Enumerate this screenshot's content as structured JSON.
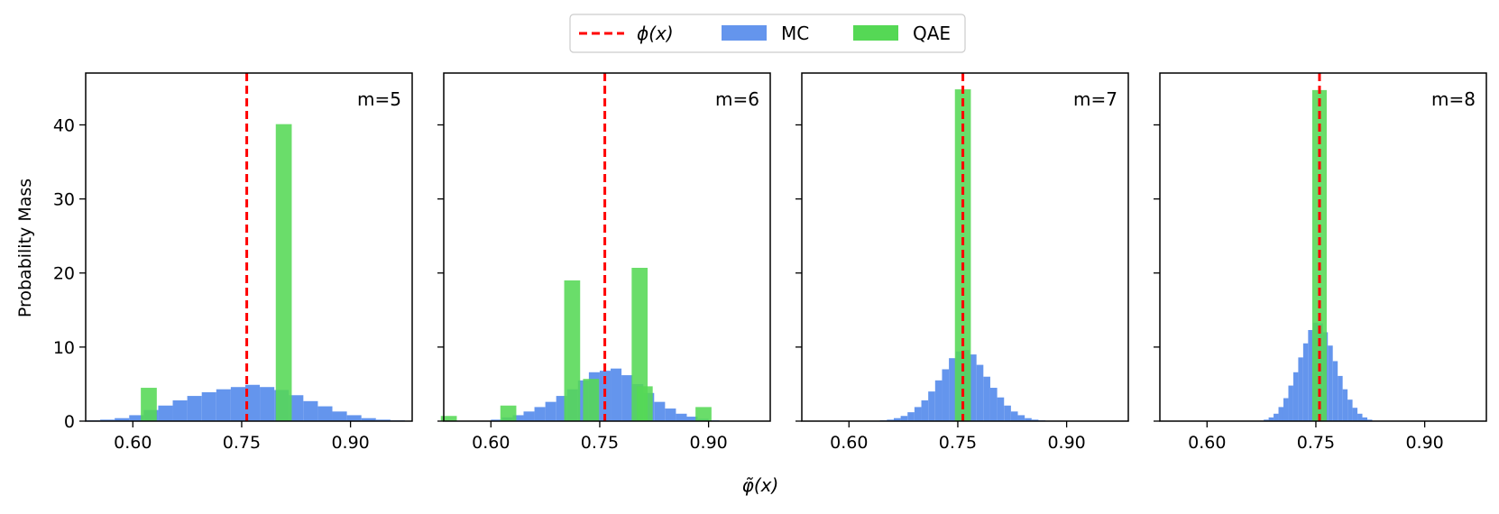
{
  "chart_data": {
    "type": "bar",
    "title": "",
    "xlabel": "φ̃(x)",
    "ylabel": "Probability Mass",
    "ylim": [
      0,
      47
    ],
    "xlim": [
      0.535,
      0.985
    ],
    "x_ticks": [
      0.6,
      0.75,
      0.9
    ],
    "x_tick_labels": [
      "0.60",
      "0.75",
      "0.90"
    ],
    "y_ticks": [
      0,
      10,
      20,
      30,
      40
    ],
    "y_tick_labels": [
      "0",
      "10",
      "20",
      "30",
      "40"
    ],
    "legend": {
      "placement": "top-center",
      "entries": [
        {
          "key": "phi",
          "label": "ϕ(x)",
          "kind": "dashed-line",
          "color": "#ff0000"
        },
        {
          "key": "mc",
          "label": "MC",
          "kind": "patch",
          "color": "#6495ed"
        },
        {
          "key": "qae",
          "label": "QAE",
          "kind": "patch",
          "color": "#55d855"
        }
      ]
    },
    "colors": {
      "mc": "#6495ed",
      "qae": "#55d855",
      "phi": "#ff0000"
    },
    "panels": [
      {
        "label": "m=5",
        "phi": 0.757,
        "mc": {
          "bin_width": 0.02,
          "bins": [
            [
              0.545,
              0.1
            ],
            [
              0.565,
              0.2
            ],
            [
              0.585,
              0.4
            ],
            [
              0.605,
              0.8
            ],
            [
              0.625,
              1.5
            ],
            [
              0.645,
              2.1
            ],
            [
              0.665,
              2.8
            ],
            [
              0.685,
              3.4
            ],
            [
              0.705,
              3.9
            ],
            [
              0.725,
              4.3
            ],
            [
              0.745,
              4.6
            ],
            [
              0.765,
              4.9
            ],
            [
              0.785,
              4.6
            ],
            [
              0.805,
              4.2
            ],
            [
              0.825,
              3.5
            ],
            [
              0.845,
              2.7
            ],
            [
              0.865,
              2.0
            ],
            [
              0.885,
              1.3
            ],
            [
              0.905,
              0.8
            ],
            [
              0.925,
              0.4
            ],
            [
              0.945,
              0.2
            ],
            [
              0.965,
              0.1
            ]
          ]
        },
        "qae": {
          "bar_width": 0.022,
          "bars": [
            [
              0.622,
              4.5
            ],
            [
              0.808,
              40.1
            ]
          ]
        }
      },
      {
        "label": "m=6",
        "phi": 0.757,
        "mc": {
          "bin_width": 0.015,
          "bins": [
            [
              0.6075,
              0.2
            ],
            [
              0.6225,
              0.5
            ],
            [
              0.6375,
              0.8
            ],
            [
              0.6525,
              1.3
            ],
            [
              0.6675,
              1.9
            ],
            [
              0.6825,
              2.6
            ],
            [
              0.6975,
              3.4
            ],
            [
              0.7125,
              4.3
            ],
            [
              0.7275,
              5.5
            ],
            [
              0.7425,
              6.6
            ],
            [
              0.7575,
              6.8
            ],
            [
              0.7725,
              7.1
            ],
            [
              0.7875,
              6.2
            ],
            [
              0.8025,
              5.0
            ],
            [
              0.8175,
              3.8
            ],
            [
              0.8325,
              2.6
            ],
            [
              0.8475,
              1.7
            ],
            [
              0.8625,
              1.0
            ],
            [
              0.8775,
              0.6
            ],
            [
              0.8925,
              0.3
            ],
            [
              0.9075,
              0.1
            ]
          ]
        },
        "qae": {
          "bar_width": 0.022,
          "bars": [
            [
              0.542,
              0.7
            ],
            [
              0.624,
              2.1
            ],
            [
              0.712,
              19.0
            ],
            [
              0.738,
              5.7
            ],
            [
              0.805,
              20.7
            ],
            [
              0.812,
              4.7
            ],
            [
              0.893,
              1.9
            ]
          ]
        }
      },
      {
        "label": "m=7",
        "phi": 0.757,
        "mc": {
          "bin_width": 0.0095,
          "bins": [
            [
              0.6475,
              0.1
            ],
            [
              0.657,
              0.2
            ],
            [
              0.6665,
              0.4
            ],
            [
              0.676,
              0.7
            ],
            [
              0.6855,
              1.2
            ],
            [
              0.695,
              1.9
            ],
            [
              0.7045,
              2.8
            ],
            [
              0.714,
              4.0
            ],
            [
              0.7235,
              5.5
            ],
            [
              0.733,
              7.0
            ],
            [
              0.7425,
              8.5
            ],
            [
              0.752,
              9.4
            ],
            [
              0.7615,
              9.6
            ],
            [
              0.771,
              9.0
            ],
            [
              0.7805,
              7.6
            ],
            [
              0.79,
              6.0
            ],
            [
              0.7995,
              4.5
            ],
            [
              0.809,
              3.2
            ],
            [
              0.8185,
              2.1
            ],
            [
              0.828,
              1.3
            ],
            [
              0.8375,
              0.8
            ],
            [
              0.847,
              0.4
            ],
            [
              0.8565,
              0.2
            ],
            [
              0.866,
              0.1
            ]
          ]
        },
        "qae": {
          "bar_width": 0.022,
          "bars": [
            [
              0.757,
              44.8
            ]
          ]
        }
      },
      {
        "label": "m=8",
        "phi": 0.755,
        "mc": {
          "bin_width": 0.0068,
          "bins": [
            [
              0.6815,
              0.2
            ],
            [
              0.6883,
              0.5
            ],
            [
              0.6951,
              1.0
            ],
            [
              0.7019,
              1.9
            ],
            [
              0.7087,
              3.1
            ],
            [
              0.7155,
              4.8
            ],
            [
              0.7223,
              6.6
            ],
            [
              0.7291,
              8.6
            ],
            [
              0.7359,
              10.5
            ],
            [
              0.7427,
              12.3
            ],
            [
              0.7495,
              13.3
            ],
            [
              0.7563,
              13.2
            ],
            [
              0.7631,
              12.0
            ],
            [
              0.7699,
              10.2
            ],
            [
              0.7767,
              8.1
            ],
            [
              0.7835,
              6.1
            ],
            [
              0.7903,
              4.3
            ],
            [
              0.7971,
              2.9
            ],
            [
              0.8039,
              1.8
            ],
            [
              0.8107,
              1.0
            ],
            [
              0.8175,
              0.5
            ],
            [
              0.8243,
              0.2
            ]
          ]
        },
        "qae": {
          "bar_width": 0.02,
          "bars": [
            [
              0.755,
              44.7
            ]
          ]
        }
      }
    ]
  }
}
